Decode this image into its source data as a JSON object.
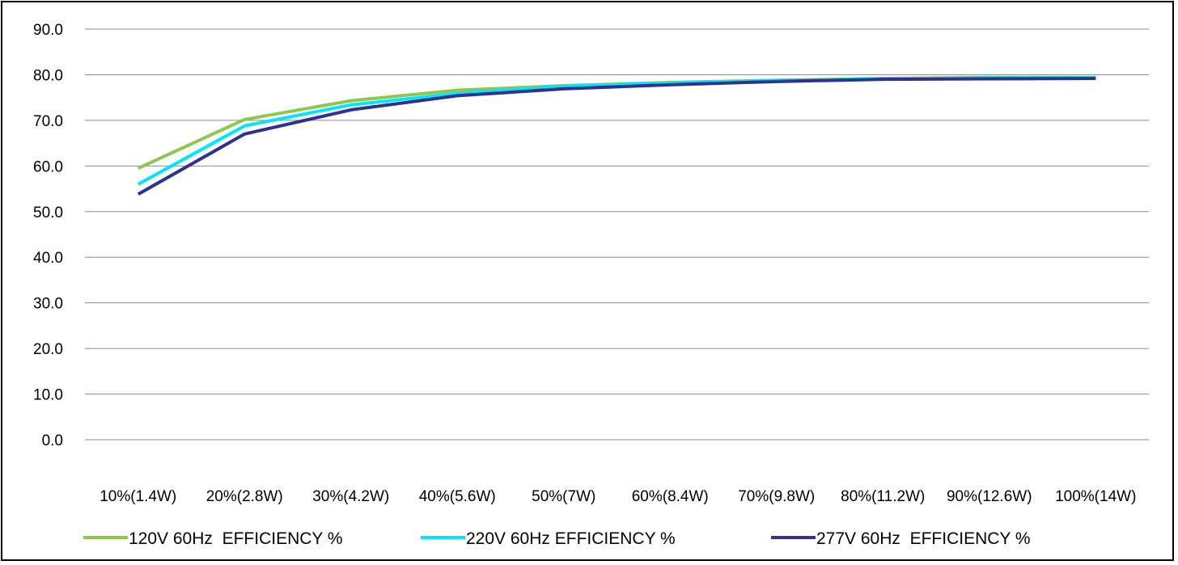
{
  "chart_data": {
    "type": "line",
    "categories": [
      "10%(1.4W)",
      "20%(2.8W)",
      "30%(4.2W)",
      "40%(5.6W)",
      "50%(7W)",
      "60%(8.4W)",
      "70%(9.8W)",
      "80%(11.2W)",
      "90%(12.6W)",
      "100%(14W)"
    ],
    "series": [
      {
        "name": "120V 60Hz  EFFICIENCY %",
        "color": "#8CC84B",
        "values": [
          59.5,
          70.2,
          74.3,
          76.6,
          77.6,
          78.3,
          78.8,
          79.2,
          79.4,
          79.4
        ]
      },
      {
        "name": "220V 60Hz EFFICIENCY %",
        "color": "#00E5FF",
        "values": [
          56.0,
          68.8,
          73.4,
          75.9,
          77.5,
          78.2,
          78.7,
          79.1,
          79.3,
          79.3
        ]
      },
      {
        "name": "277V 60Hz  EFFICIENCY %",
        "color": "#2E3192",
        "values": [
          53.8,
          67.0,
          72.3,
          75.4,
          76.9,
          77.8,
          78.5,
          79.0,
          79.1,
          79.2
        ]
      }
    ],
    "yticks": [
      "0.0",
      "10.0",
      "20.0",
      "30.0",
      "40.0",
      "50.0",
      "60.0",
      "70.0",
      "80.0",
      "90.0"
    ],
    "ylim": [
      0,
      90
    ],
    "grid": true,
    "legend_position": "bottom"
  }
}
